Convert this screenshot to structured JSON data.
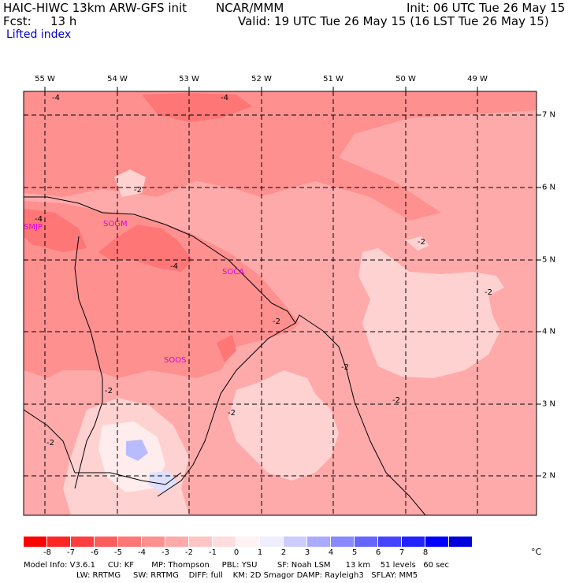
{
  "header": {
    "model": "HAIC-HIWC 13km ARW-GFS init",
    "org": "NCAR/MMM",
    "init": "Init: 06 UTC Tue 26 May 15",
    "fcst_label": "Fcst:",
    "fcst_value": "13 h",
    "valid": "Valid: 19 UTC Tue 26 May 15 (16 LST Tue 26 May 15)",
    "field": "Lifted index"
  },
  "map": {
    "longitudes": [
      "55 W",
      "54 W",
      "53 W",
      "52 W",
      "51 W",
      "50 W",
      "49 W"
    ],
    "latitudes": [
      "7 N",
      "6 N",
      "5 N",
      "4 N",
      "3 N",
      "2 N"
    ],
    "stations": [
      "SMJP",
      "SOGM",
      "SOCA",
      "SOOS"
    ],
    "contour_labels": [
      "-4",
      "-4",
      "-2",
      "-4",
      "-4",
      "-2",
      "-2",
      "-2",
      "-2",
      "-2",
      "-2",
      "-2",
      "-2"
    ],
    "colors": {
      "base": "#ffaaaa",
      "darker": "#ff8080",
      "darkest": "#ff5c5c",
      "light": "#ffd2d2",
      "pale": "#ffecec",
      "blue_light": "#dde0ff",
      "blue": "#b8bcff"
    }
  },
  "colorbar": {
    "colors": [
      "#ff0000",
      "#ff2626",
      "#ff3f3f",
      "#ff5c5c",
      "#ff7676",
      "#ff9090",
      "#ffaaaa",
      "#ffc4c4",
      "#ffdddd",
      "#fff2f2",
      "#eeeeff",
      "#ccccff",
      "#aaaaff",
      "#8888ff",
      "#6666ff",
      "#4444ff",
      "#2222ff",
      "#0000ff",
      "#0000dd"
    ],
    "ticks": [
      "-8",
      "-7",
      "-6",
      "-5",
      "-4",
      "-3",
      "-2",
      "-1",
      "0",
      "1",
      "2",
      "3",
      "4",
      "5",
      "6",
      "7",
      "8"
    ],
    "unit": "°C"
  },
  "footer": {
    "line1": "Model Info: V3.6.1     CU: KF       MP: Thompson     PBL: YSU        SF: Noah LSM      13 km    51 levels   60 sec",
    "line2": "LW: RRTMG     SW: RRTMG    DIFF: full    KM: 2D Smagor DAMP: Rayleigh3   SFLAY: MM5"
  }
}
